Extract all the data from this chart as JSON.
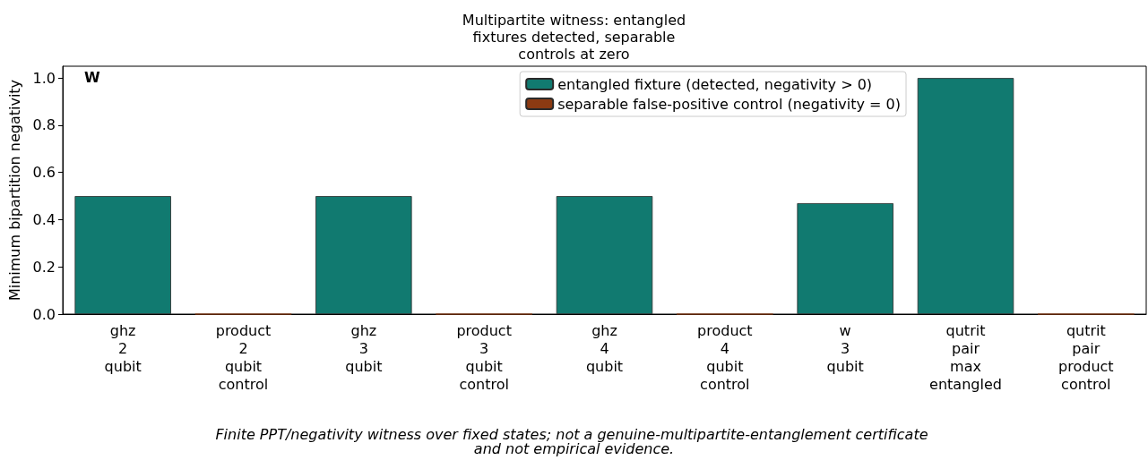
{
  "chart_data": {
    "type": "bar",
    "title": "Multipartite witness: entangled\nfixtures detected, separable\ncontrols at zero",
    "ylabel": "Minimum bipartition negativity",
    "categories": [
      "ghz\n2\nqubit",
      "product\n2\nqubit\ncontrol",
      "ghz\n3\nqubit",
      "product\n3\nqubit\ncontrol",
      "ghz\n4\nqubit",
      "product\n4\nqubit\ncontrol",
      "w\n3\nqubit",
      "qutrit\npair\nmax\nentangled",
      "qutrit\npair\nproduct\ncontrol"
    ],
    "series": [
      {
        "name": "entangled fixture (detected, negativity > 0)",
        "color": "#117a70",
        "values": [
          0.5,
          null,
          0.5,
          null,
          0.5,
          null,
          0.47,
          1.0,
          null
        ]
      },
      {
        "name": "separable false-positive control (negativity = 0)",
        "color": "#8b3a12",
        "values": [
          null,
          0,
          null,
          0,
          null,
          0,
          null,
          null,
          0
        ]
      }
    ],
    "ylim": [
      0,
      1.05
    ],
    "yticks": [
      {
        "value": 0,
        "label": "0.0"
      },
      {
        "value": 0.2,
        "label": "0.2"
      },
      {
        "value": 0.4,
        "label": "0.4"
      },
      {
        "value": 0.6,
        "label": "0.6"
      },
      {
        "value": 0.8,
        "label": "0.8"
      },
      {
        "value": 1.0,
        "label": "1.0"
      }
    ],
    "grid": false,
    "legend": "top right",
    "annotations": [
      "W",
      "Finite PPT/negativity witness over fixed states; not a genuine-multipartite-entanglement certificate and not empirical evidence."
    ]
  }
}
